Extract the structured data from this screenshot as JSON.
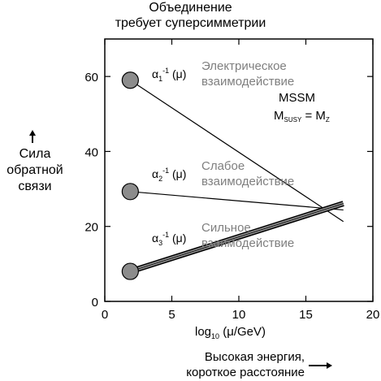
{
  "chart_data": {
    "type": "line",
    "title_lines": [
      "Объединение",
      "требует суперсимметрии"
    ],
    "ylabel_lines": [
      "Сила",
      "обратной",
      "связи"
    ],
    "xlabel_main": "log",
    "xlabel_sub": "10",
    "xlabel_rest": " (μ/GeV)",
    "energy_note_lines": [
      "Высокая энергия,",
      "короткое расстояние"
    ],
    "xlim": [
      0,
      20
    ],
    "ylim": [
      0,
      70
    ],
    "xticks": [
      0,
      5,
      10,
      15,
      20
    ],
    "yticks": [
      0,
      20,
      40,
      60
    ],
    "grid": false,
    "series": [
      {
        "name": "α1⁻¹(μ)",
        "x": [
          1.9,
          17.8
        ],
        "y": [
          59.0,
          21.3
        ],
        "label_lines": [
          "Электрическое",
          "взаимодействие"
        ]
      },
      {
        "name": "α2⁻¹(μ)",
        "x": [
          1.9,
          17.8
        ],
        "y": [
          29.3,
          24.4
        ],
        "label_lines": [
          "Слабое",
          "взаимодействие"
        ]
      },
      {
        "name": "α3⁻¹(μ)",
        "x": [
          1.9,
          17.8
        ],
        "y": [
          8.0,
          26.1
        ],
        "label_lines": [
          "Сильное",
          "взаимодействие"
        ]
      }
    ],
    "annotation": {
      "line1": "MSSM",
      "line2_main": "M",
      "line2_sub": "SUSY",
      "line2_mid": " = M",
      "line2_sub2": "Z"
    },
    "colors": {
      "marker_fill": "#8c8c8c",
      "label_grey": "#7f7f7f",
      "band": "#909090"
    }
  }
}
